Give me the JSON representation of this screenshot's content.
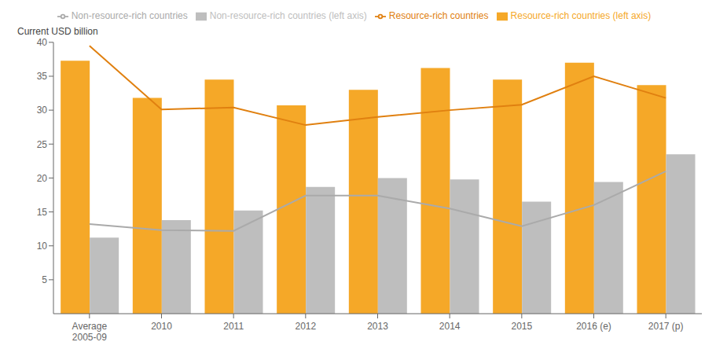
{
  "chart_data": {
    "type": "bar",
    "ylabel": "Current USD billion",
    "categories": [
      "Average\n2005-09",
      "2010",
      "2011",
      "2012",
      "2013",
      "2014",
      "2015",
      "2016 (e)",
      "2017 (p)"
    ],
    "series": [
      {
        "name": "Resource-rich countries (left axis)",
        "type": "bar",
        "color": "#F5A828",
        "values": [
          37.3,
          31.8,
          34.5,
          30.7,
          33.0,
          36.2,
          34.5,
          37.0,
          33.7
        ]
      },
      {
        "name": "Non-resource-rich countries (left axis)",
        "type": "bar",
        "color": "#BEBEBE",
        "values": [
          11.2,
          13.8,
          15.2,
          18.7,
          20.0,
          19.8,
          16.5,
          19.4,
          23.5
        ]
      },
      {
        "name": "Resource-rich countries",
        "type": "line",
        "color": "#E08010",
        "values": [
          39.5,
          30.1,
          30.4,
          27.8,
          29.0,
          30.0,
          30.8,
          35.0,
          31.8
        ]
      },
      {
        "name": "Non-resource-rich countries",
        "type": "line",
        "color": "#AAAAAA",
        "values": [
          13.2,
          12.3,
          12.2,
          17.4,
          17.4,
          15.5,
          12.9,
          16.0,
          21.0
        ]
      }
    ],
    "ylim": [
      0,
      40
    ],
    "yticks": [
      5,
      10,
      15,
      20,
      25,
      30,
      35,
      40
    ],
    "grid": false,
    "legend": "top"
  }
}
